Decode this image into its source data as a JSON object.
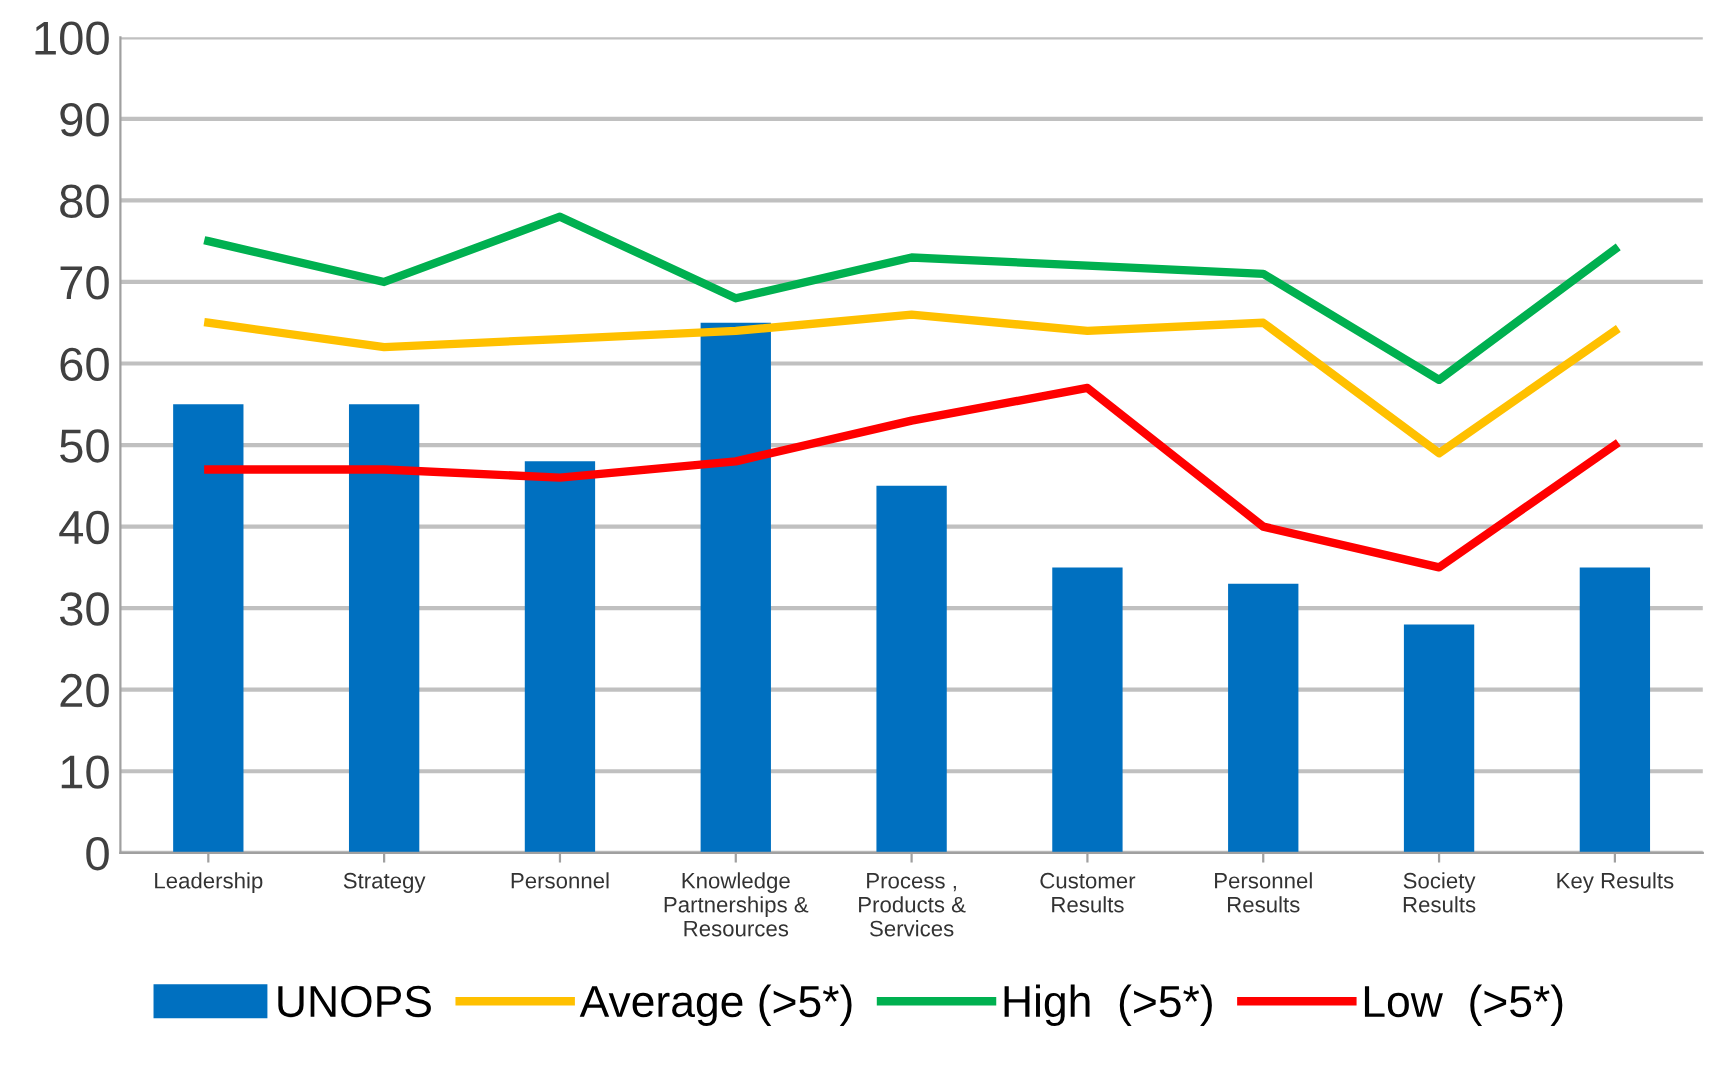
{
  "chart_data": {
    "type": "bar",
    "categories": [
      "Leadership",
      "Strategy",
      "Personnel",
      "Knowledge\nPartnerships &\nResources",
      "Process ,\nProducts &\nServices",
      "Customer\nResults",
      "Personnel\nResults",
      "Society\nResults",
      "Key Results"
    ],
    "series": [
      {
        "name": "UNOPS",
        "color": "#0070c0",
        "values": [
          55,
          55,
          48,
          65,
          45,
          35,
          33,
          28,
          35
        ]
      },
      {
        "name": "Average (>5*)",
        "type": "line",
        "color": "#ffc000",
        "values": [
          65,
          62,
          63,
          64,
          66,
          64,
          65,
          49,
          64
        ]
      },
      {
        "name": "High  (>5*)",
        "type": "line",
        "color": "#00b050",
        "values": [
          75,
          70,
          78,
          68,
          73,
          72,
          71,
          58,
          74
        ]
      },
      {
        "name": "Low  (>5*)",
        "type": "line",
        "color": "#ff0000",
        "values": [
          47,
          47,
          46,
          48,
          53,
          57,
          40,
          35,
          50
        ]
      }
    ],
    "ylim": [
      0,
      100
    ],
    "yticks": [
      0,
      10,
      20,
      30,
      40,
      50,
      60,
      70,
      80,
      90,
      100
    ],
    "grid": "y",
    "legend": "bottom",
    "marker": "none",
    "line_style": "solid"
  }
}
